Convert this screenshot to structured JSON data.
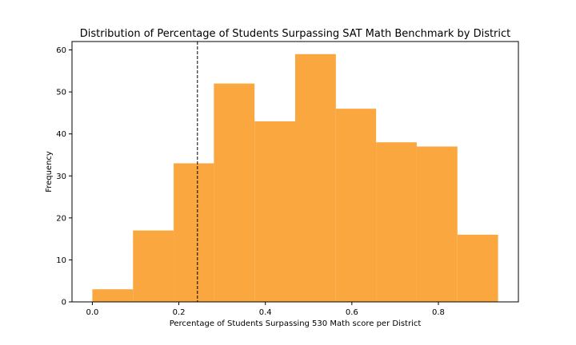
{
  "chart_data": {
    "type": "histogram",
    "title": "Distribution of Percentage of Students Surpassing SAT Math Benchmark by District",
    "xlabel": "Percentage of Students Surpassing 530 Math score per District",
    "ylabel": "Frequency",
    "bin_edges": [
      0.0,
      0.094,
      0.188,
      0.281,
      0.375,
      0.469,
      0.563,
      0.656,
      0.75,
      0.844,
      0.938
    ],
    "counts": [
      3,
      17,
      33,
      52,
      43,
      59,
      46,
      38,
      37,
      16
    ],
    "bar_color": "#faa73f",
    "reference_line": {
      "x": 0.243,
      "style": "dashed",
      "color": "#000000"
    },
    "xlim": [
      -0.047,
      0.985
    ],
    "ylim": [
      0,
      62
    ],
    "xticks": [
      0.0,
      0.2,
      0.4,
      0.6,
      0.8
    ],
    "xtick_labels": [
      "0.0",
      "0.2",
      "0.4",
      "0.6",
      "0.8"
    ],
    "yticks": [
      0,
      10,
      20,
      30,
      40,
      50,
      60
    ],
    "ytick_labels": [
      "0",
      "10",
      "20",
      "30",
      "40",
      "50",
      "60"
    ],
    "grid": false,
    "legend": false
  }
}
